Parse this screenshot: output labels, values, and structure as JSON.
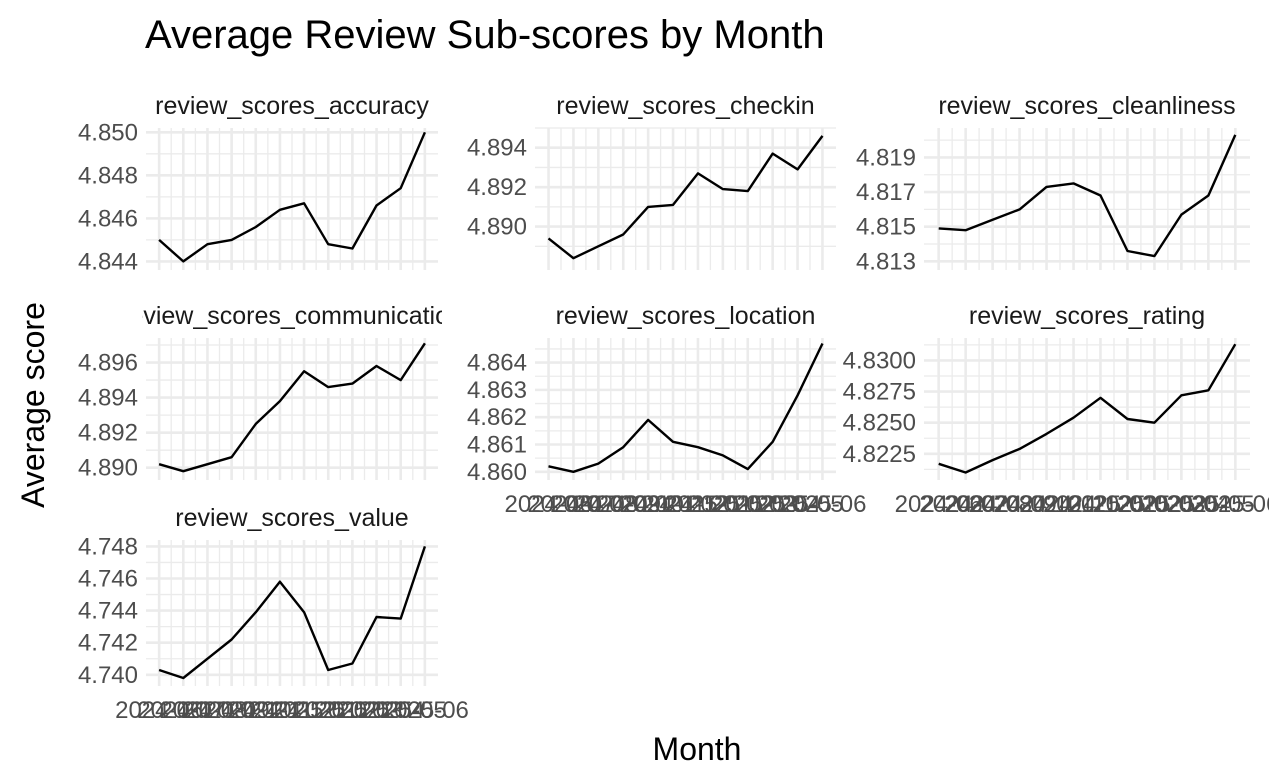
{
  "chart_data": {
    "type": "line",
    "title": "Average Review Sub-scores by Month",
    "xlabel": "Month",
    "ylabel": "Average score",
    "grid": true,
    "legend": "none",
    "facets": [
      {
        "name": "review_scores_accuracy",
        "x_ticks": [],
        "y_ticks": [
          "4.844",
          "4.846",
          "4.848",
          "4.850"
        ],
        "ylim": [
          4.8436,
          4.8502
        ],
        "values": [
          4.845,
          4.844,
          4.8448,
          4.845,
          4.8456,
          4.8464,
          4.8467,
          4.8448,
          4.8446,
          4.8466,
          4.8474,
          4.85
        ]
      },
      {
        "name": "review_scores_checkin",
        "x_ticks": [],
        "y_ticks": [
          "4.890",
          "4.892",
          "4.894"
        ],
        "ylim": [
          4.8878,
          4.895
        ],
        "values": [
          4.8894,
          4.8884,
          4.889,
          4.8896,
          4.891,
          4.8911,
          4.8927,
          4.8919,
          4.8918,
          4.8937,
          4.8929,
          4.8946
        ]
      },
      {
        "name": "review_scores_cleanliness",
        "x_ticks": [],
        "y_ticks": [
          "4.813",
          "4.815",
          "4.817",
          "4.819"
        ],
        "ylim": [
          4.8125,
          4.8207
        ],
        "values": [
          4.8149,
          4.8148,
          4.8154,
          4.816,
          4.8173,
          4.8175,
          4.8168,
          4.8136,
          4.8133,
          4.8157,
          4.8168,
          4.8203
        ]
      },
      {
        "name": "review_scores_communication",
        "x_ticks": [],
        "y_ticks": [
          "4.890",
          "4.892",
          "4.894",
          "4.896"
        ],
        "ylim": [
          4.8893,
          4.8974
        ],
        "values": [
          4.8902,
          4.8898,
          4.8902,
          4.8906,
          4.8925,
          4.8938,
          4.8955,
          4.8946,
          4.8948,
          4.8958,
          4.895,
          4.8971
        ]
      },
      {
        "name": "review_scores_location",
        "x_ticks": [
          "2024-06",
          "2024-07",
          "2024-08",
          "2024-09",
          "2024-10",
          "2024-11",
          "2024-12",
          "2025-01",
          "2025-02",
          "2025-03",
          "2025-04",
          "2025-05",
          "2025-06"
        ],
        "y_ticks": [
          "4.860",
          "4.861",
          "4.862",
          "4.863",
          "4.864"
        ],
        "ylim": [
          4.8597,
          4.8649
        ],
        "values": [
          4.8602,
          4.86,
          4.8603,
          4.8609,
          4.8619,
          4.8611,
          4.8609,
          4.8606,
          4.8601,
          4.8611,
          4.8628,
          4.8647
        ]
      },
      {
        "name": "review_scores_rating",
        "x_ticks": [
          "2024-06",
          "2024-07",
          "2024-08",
          "2024-09",
          "2024-10",
          "2024-11",
          "2024-12",
          "2025-01",
          "2025-02",
          "2025-03",
          "2025-04",
          "2025-05",
          "2025-06"
        ],
        "y_ticks": [
          "4.8225",
          "4.8250",
          "4.8275",
          "4.8300"
        ],
        "ylim": [
          4.8204,
          4.8318
        ],
        "values": [
          4.8217,
          4.821,
          4.822,
          4.8229,
          4.8241,
          4.8254,
          4.827,
          4.8253,
          4.825,
          4.8272,
          4.8276,
          4.8313
        ]
      },
      {
        "name": "review_scores_value",
        "x_ticks": [
          "2024-06",
          "2024-07",
          "2024-08",
          "2024-09",
          "2024-10",
          "2024-11",
          "2024-12",
          "2025-01",
          "2025-02",
          "2025-03",
          "2025-04",
          "2025-05",
          "2025-06"
        ],
        "y_ticks": [
          "4.740",
          "4.742",
          "4.744",
          "4.746",
          "4.748"
        ],
        "ylim": [
          4.7393,
          4.7484
        ],
        "values": [
          4.7403,
          4.7398,
          4.741,
          4.7422,
          4.7439,
          4.7458,
          4.7439,
          4.7403,
          4.7407,
          4.7436,
          4.7435,
          4.748
        ]
      }
    ]
  }
}
